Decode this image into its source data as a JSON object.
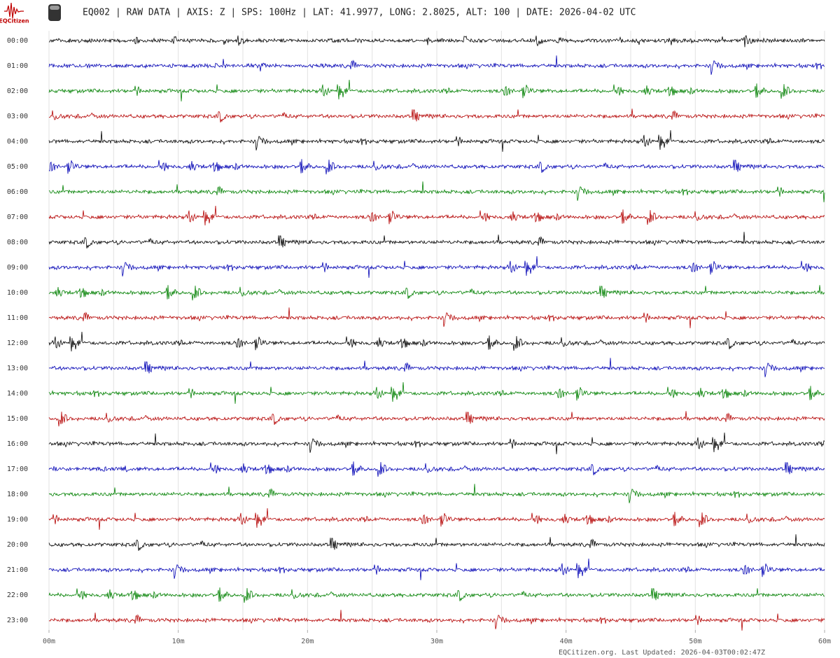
{
  "chart_data": {
    "type": "helicorder",
    "logo": "EQCitizen",
    "title": "EQ002 | RAW DATA | AXIS: Z | SPS: 100Hz | LAT: 41.9977, LONG: 2.8025, ALT: 100 | DATE: 2026-04-02 UTC",
    "rows": [
      "00:00",
      "01:00",
      "02:00",
      "03:00",
      "04:00",
      "05:00",
      "06:00",
      "07:00",
      "08:00",
      "09:00",
      "10:00",
      "11:00",
      "12:00",
      "13:00",
      "14:00",
      "15:00",
      "16:00",
      "17:00",
      "18:00",
      "19:00",
      "20:00",
      "21:00",
      "22:00",
      "23:00"
    ],
    "row_colors": [
      "#000000",
      "#0000b4",
      "#008000",
      "#b40000"
    ],
    "xlim": [
      0,
      60
    ],
    "xticks": [
      {
        "value": 0,
        "label": "00m"
      },
      {
        "value": 10,
        "label": "10m"
      },
      {
        "value": 20,
        "label": "20m"
      },
      {
        "value": 30,
        "label": "30m"
      },
      {
        "value": 40,
        "label": "40m"
      },
      {
        "value": 50,
        "label": "50m"
      },
      {
        "value": 60,
        "label": "60m"
      }
    ],
    "xgrid": [
      0,
      5,
      10,
      15,
      20,
      25,
      30,
      35,
      40,
      45,
      50,
      55,
      60
    ],
    "footer": "EQCitizen.org. Last Updated: 2026-04-03T00:02:47Z"
  }
}
